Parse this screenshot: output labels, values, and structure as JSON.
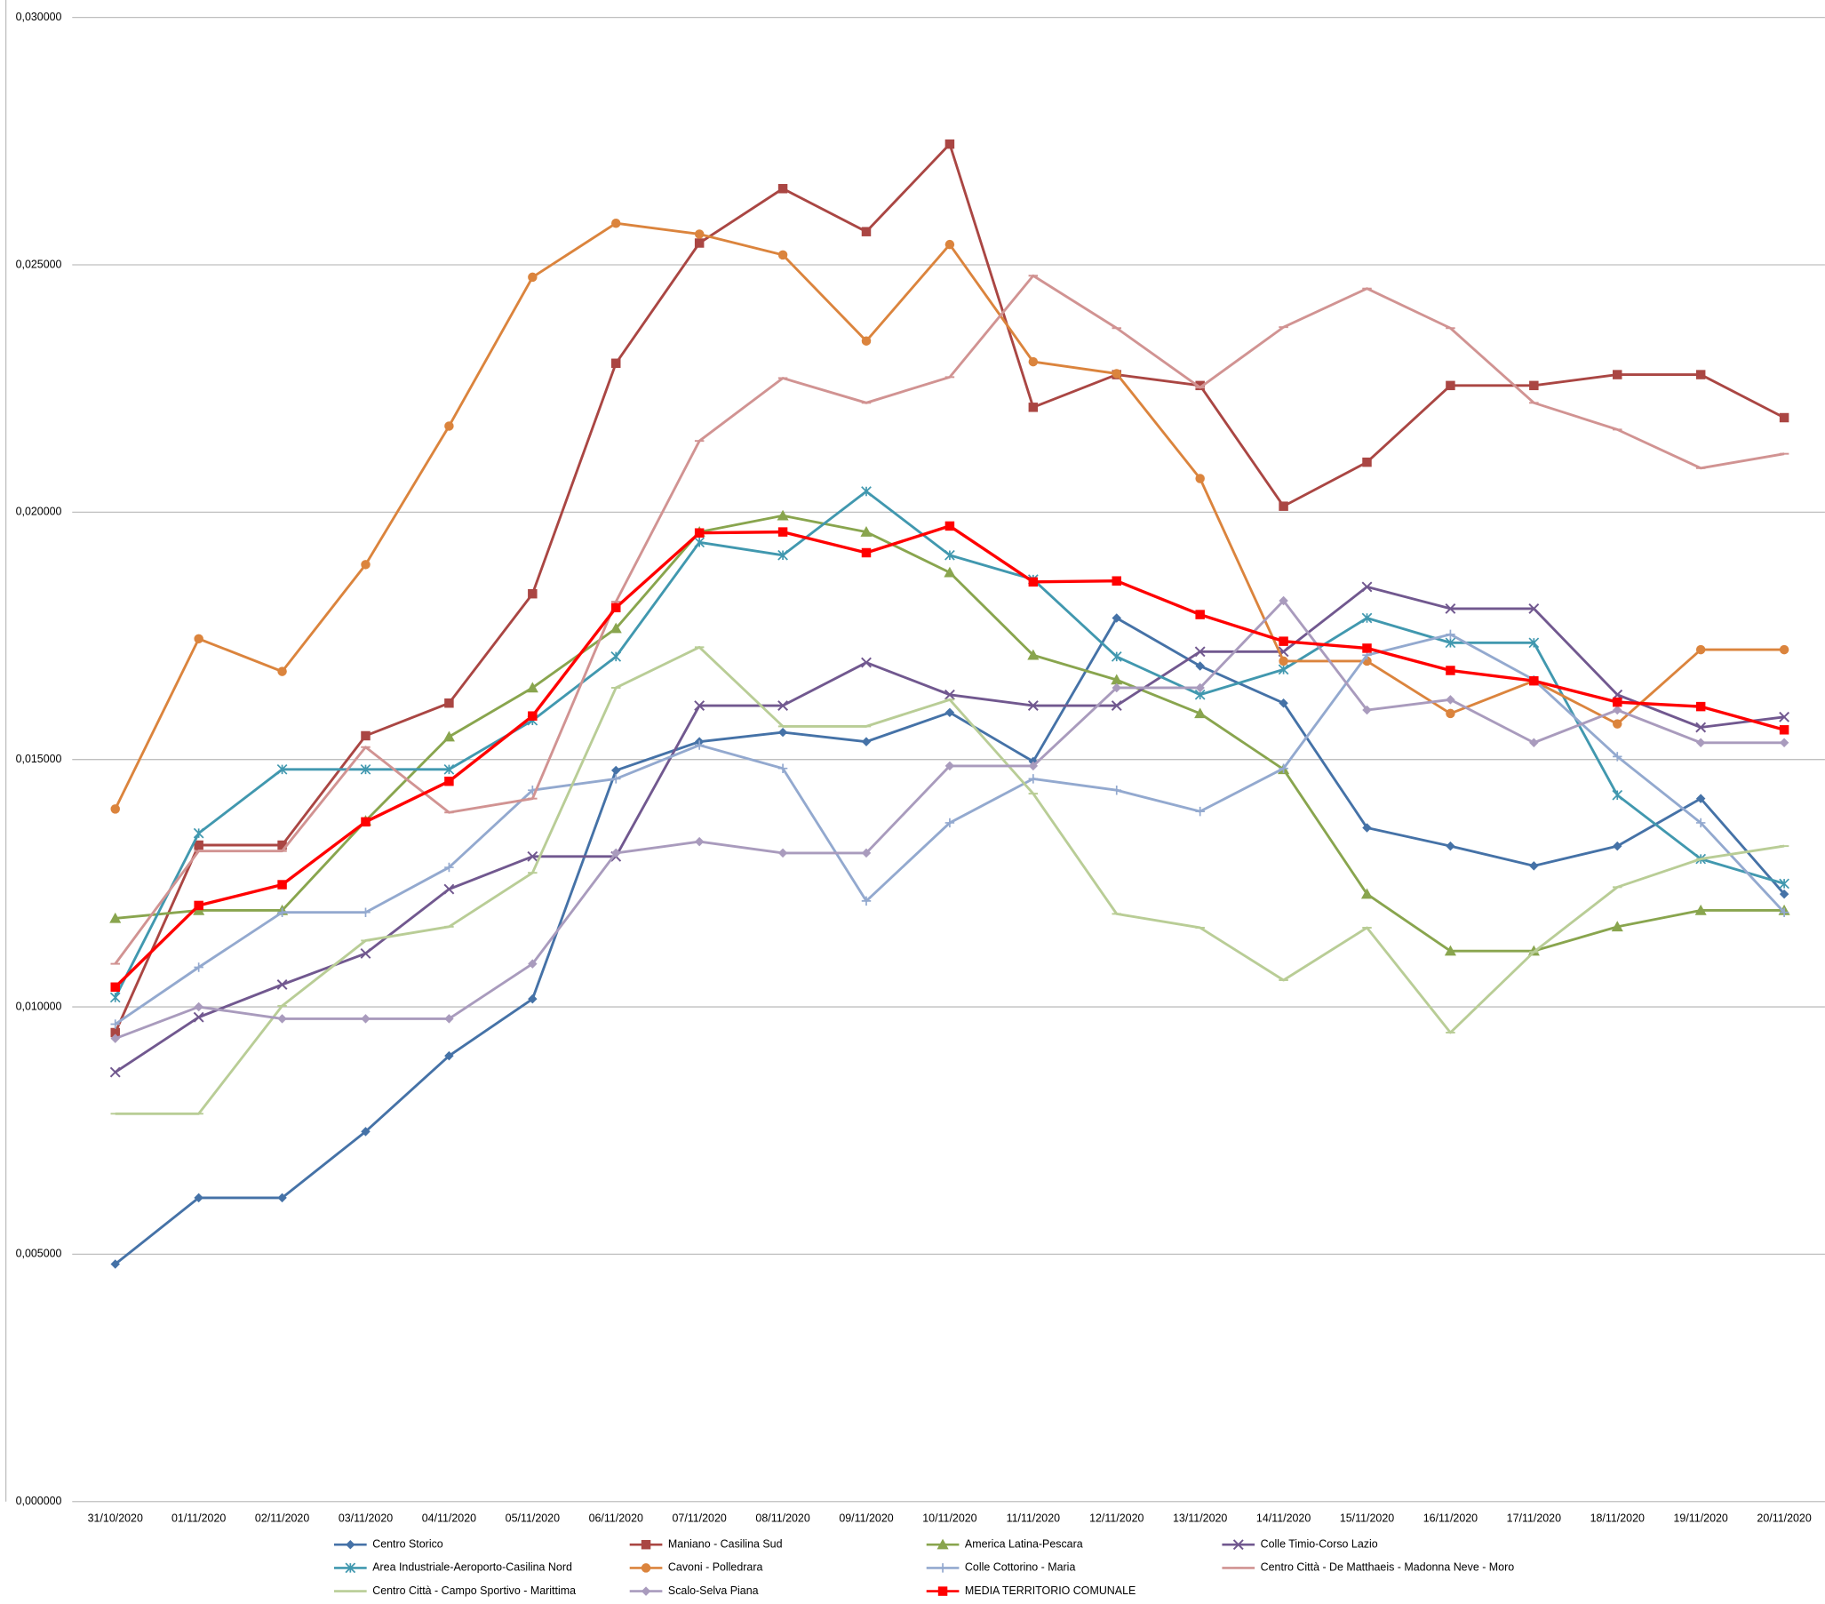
{
  "chart_data": {
    "type": "line",
    "grid": true,
    "legend": "bottom",
    "x": [
      "31/10/2020",
      "01/11/2020",
      "02/11/2020",
      "03/11/2020",
      "04/11/2020",
      "05/11/2020",
      "06/11/2020",
      "07/11/2020",
      "08/11/2020",
      "09/11/2020",
      "10/11/2020",
      "11/11/2020",
      "12/11/2020",
      "13/11/2020",
      "14/11/2020",
      "15/11/2020",
      "16/11/2020",
      "17/11/2020",
      "18/11/2020",
      "19/11/2020",
      "20/11/2020"
    ],
    "ylim": [
      0,
      0.03
    ],
    "yticks": [
      {
        "value": 0,
        "label": "0,000000"
      },
      {
        "value": 0.005,
        "label": "0,005000"
      },
      {
        "value": 0.01,
        "label": "0,010000"
      },
      {
        "value": 0.015,
        "label": "0,015000"
      },
      {
        "value": 0.02,
        "label": "0,020000"
      },
      {
        "value": 0.025,
        "label": "0,025000"
      },
      {
        "value": 0.03,
        "label": "0,030000"
      }
    ],
    "series": [
      {
        "name": "Centro Storico",
        "color": "#4572a7",
        "marker": "diamond",
        "values": [
          0.0048,
          0.00614,
          0.00614,
          0.00748,
          0.00901,
          0.01016,
          0.01478,
          0.01536,
          0.01555,
          0.01536,
          0.01595,
          0.01496,
          0.01786,
          0.01689,
          0.01614,
          0.01362,
          0.01325,
          0.01285,
          0.01325,
          0.01421,
          0.01228
        ]
      },
      {
        "name": "Maniano - Casilina Sud",
        "color": "#aa4643",
        "marker": "square",
        "values": [
          0.00948,
          0.01327,
          0.01327,
          0.01548,
          0.01614,
          0.01835,
          0.02301,
          0.02544,
          0.02654,
          0.02567,
          0.02744,
          0.02212,
          0.02278,
          0.02256,
          0.02012,
          0.02101,
          0.02256,
          0.02256,
          0.02278,
          0.02278,
          0.02191
        ]
      },
      {
        "name": "America Latina-Pescara",
        "color": "#89a54e",
        "marker": "triangle",
        "values": [
          0.01179,
          0.01195,
          0.01195,
          0.01376,
          0.01546,
          0.01645,
          0.01765,
          0.0196,
          0.01993,
          0.0196,
          0.01878,
          0.01711,
          0.01661,
          0.01593,
          0.0148,
          0.01228,
          0.01113,
          0.01113,
          0.01162,
          0.01195,
          0.01195
        ]
      },
      {
        "name": "Colle Timio-Corso Lazio",
        "color": "#71588f",
        "marker": "x",
        "values": [
          0.00868,
          0.00979,
          0.01045,
          0.01108,
          0.01238,
          0.01304,
          0.01304,
          0.01609,
          0.01609,
          0.01696,
          0.01631,
          0.01609,
          0.01609,
          0.01718,
          0.01718,
          0.01849,
          0.01805,
          0.01805,
          0.01631,
          0.01565,
          0.01586
        ]
      },
      {
        "name": "Area Industriale-Aeroporto-Casilina Nord",
        "color": "#4198af",
        "marker": "asterisk",
        "values": [
          0.01019,
          0.01351,
          0.0148,
          0.0148,
          0.0148,
          0.01579,
          0.01708,
          0.01939,
          0.01913,
          0.02042,
          0.01913,
          0.01864,
          0.01708,
          0.01631,
          0.01682,
          0.01786,
          0.01736,
          0.01736,
          0.01428,
          0.01299,
          0.01249
        ]
      },
      {
        "name": "Cavoni - Polledrara",
        "color": "#db843d",
        "marker": "circle",
        "values": [
          0.014,
          0.01744,
          0.01678,
          0.01894,
          0.02174,
          0.02475,
          0.02584,
          0.02562,
          0.0252,
          0.02346,
          0.02541,
          0.02304,
          0.0228,
          0.02068,
          0.01699,
          0.01699,
          0.01593,
          0.01659,
          0.01572,
          0.01722,
          0.01722
        ]
      },
      {
        "name": "Colle Cottorino - Maria",
        "color": "#93a9cf",
        "marker": "plus",
        "values": [
          0.00965,
          0.0108,
          0.01191,
          0.01191,
          0.01282,
          0.01438,
          0.01461,
          0.01529,
          0.01482,
          0.01214,
          0.01372,
          0.01461,
          0.01438,
          0.01395,
          0.01482,
          0.01711,
          0.01753,
          0.01661,
          0.01506,
          0.01372,
          0.01191
        ]
      },
      {
        "name": "Centro Città - De Matthaeis - Madonna Neve - Moro",
        "color": "#d19392",
        "marker": "dash",
        "values": [
          0.01087,
          0.01315,
          0.01315,
          0.01525,
          0.01393,
          0.01421,
          0.01819,
          0.02144,
          0.02271,
          0.02221,
          0.02273,
          0.02478,
          0.02372,
          0.02252,
          0.02374,
          0.02452,
          0.02372,
          0.02221,
          0.02167,
          0.02089,
          0.02118
        ]
      },
      {
        "name": "Centro Città - Campo Sportivo - Marittima",
        "color": "#b9cd96",
        "marker": "dash",
        "values": [
          0.00784,
          0.00784,
          0.01002,
          0.01134,
          0.01162,
          0.01271,
          0.01645,
          0.01727,
          0.01567,
          0.01567,
          0.01621,
          0.01431,
          0.01188,
          0.0116,
          0.01054,
          0.0116,
          0.00948,
          0.01111,
          0.01242,
          0.01299,
          0.01325
        ]
      },
      {
        "name": "Scalo-Selva Piana",
        "color": "#a99bbd",
        "marker": "diamond",
        "values": [
          0.00936,
          0.01,
          0.00976,
          0.00976,
          0.00976,
          0.01087,
          0.01311,
          0.01334,
          0.01311,
          0.01311,
          0.01487,
          0.01487,
          0.01645,
          0.01645,
          0.01821,
          0.016,
          0.01621,
          0.01534,
          0.016,
          0.01534,
          0.01534
        ]
      },
      {
        "name": "MEDIA TERRITORIO COMUNALE",
        "color": "#ff0000",
        "marker": "square",
        "values": [
          0.0104,
          0.01205,
          0.01247,
          0.01374,
          0.01456,
          0.01588,
          0.01807,
          0.01958,
          0.0196,
          0.01918,
          0.01972,
          0.01859,
          0.01861,
          0.01793,
          0.01739,
          0.01725,
          0.0168,
          0.01659,
          0.01616,
          0.01607,
          0.0156
        ]
      }
    ]
  }
}
